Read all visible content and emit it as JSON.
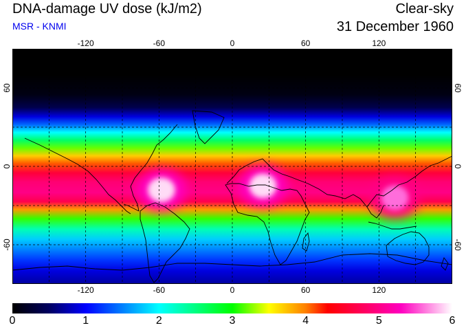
{
  "header": {
    "title": "DNA-damage UV dose (kJ/m2)",
    "subtitle": "MSR - KNMI",
    "condition": "Clear-sky",
    "date": "31 December 1960"
  },
  "map": {
    "projection": "equirectangular",
    "lon_range": [
      -180,
      180
    ],
    "lat_range": [
      -90,
      90
    ],
    "grid_lons": [
      -150,
      -120,
      -90,
      -60,
      -30,
      0,
      30,
      60,
      90,
      120,
      150
    ],
    "grid_lats": [
      -60,
      -30,
      0,
      30,
      60
    ],
    "lon_tick_labels": [
      {
        "lon": -120,
        "label": "-120"
      },
      {
        "lon": -60,
        "label": "-60"
      },
      {
        "lon": 0,
        "label": "0"
      },
      {
        "lon": 60,
        "label": "60"
      },
      {
        "lon": 120,
        "label": "120"
      }
    ],
    "lat_tick_labels": [
      {
        "lat": 60,
        "label": "60"
      },
      {
        "lat": 0,
        "label": "0"
      },
      {
        "lat": -60,
        "label": "-60"
      }
    ],
    "dose_by_latitude": [
      {
        "lat": 90,
        "dose": 0.0
      },
      {
        "lat": 70,
        "dose": 0.0
      },
      {
        "lat": 55,
        "dose": 0.1
      },
      {
        "lat": 45,
        "dose": 0.4
      },
      {
        "lat": 38,
        "dose": 0.9
      },
      {
        "lat": 32,
        "dose": 1.4
      },
      {
        "lat": 26,
        "dose": 2.0
      },
      {
        "lat": 20,
        "dose": 2.6
      },
      {
        "lat": 14,
        "dose": 3.2
      },
      {
        "lat": 8,
        "dose": 3.7
      },
      {
        "lat": 2,
        "dose": 4.1
      },
      {
        "lat": -5,
        "dose": 4.6
      },
      {
        "lat": -12,
        "dose": 4.9
      },
      {
        "lat": -20,
        "dose": 5.0
      },
      {
        "lat": -27,
        "dose": 4.7
      },
      {
        "lat": -33,
        "dose": 3.9
      },
      {
        "lat": -40,
        "dose": 3.1
      },
      {
        "lat": -48,
        "dose": 2.3
      },
      {
        "lat": -56,
        "dose": 1.8
      },
      {
        "lat": -64,
        "dose": 1.5
      },
      {
        "lat": -72,
        "dose": 1.2
      },
      {
        "lat": -80,
        "dose": 0.9
      },
      {
        "lat": -90,
        "dose": 0.7
      }
    ],
    "high_dose_regions": [
      {
        "name": "south-america",
        "lon": -58,
        "lat": -18,
        "dose": 5.9
      },
      {
        "name": "southern-africa",
        "lon": 25,
        "lat": -15,
        "dose": 5.9
      },
      {
        "name": "australia",
        "lon": 133,
        "lat": -24,
        "dose": 5.6
      }
    ]
  },
  "colorbar": {
    "min": 0,
    "max": 6,
    "labels": [
      "0",
      "1",
      "2",
      "3",
      "4",
      "5",
      "6"
    ],
    "stops": [
      {
        "value": 0.0,
        "color": "#000000"
      },
      {
        "value": 0.5,
        "color": "#000060"
      },
      {
        "value": 1.0,
        "color": "#0000ff"
      },
      {
        "value": 1.5,
        "color": "#0080ff"
      },
      {
        "value": 2.0,
        "color": "#00ffff"
      },
      {
        "value": 2.5,
        "color": "#00ff80"
      },
      {
        "value": 3.0,
        "color": "#00ff00"
      },
      {
        "value": 3.5,
        "color": "#ffff00"
      },
      {
        "value": 4.0,
        "color": "#ff8000"
      },
      {
        "value": 4.3,
        "color": "#ff0000"
      },
      {
        "value": 4.8,
        "color": "#ff0060"
      },
      {
        "value": 5.3,
        "color": "#ff00c0"
      },
      {
        "value": 6.0,
        "color": "#ffffff"
      }
    ]
  }
}
